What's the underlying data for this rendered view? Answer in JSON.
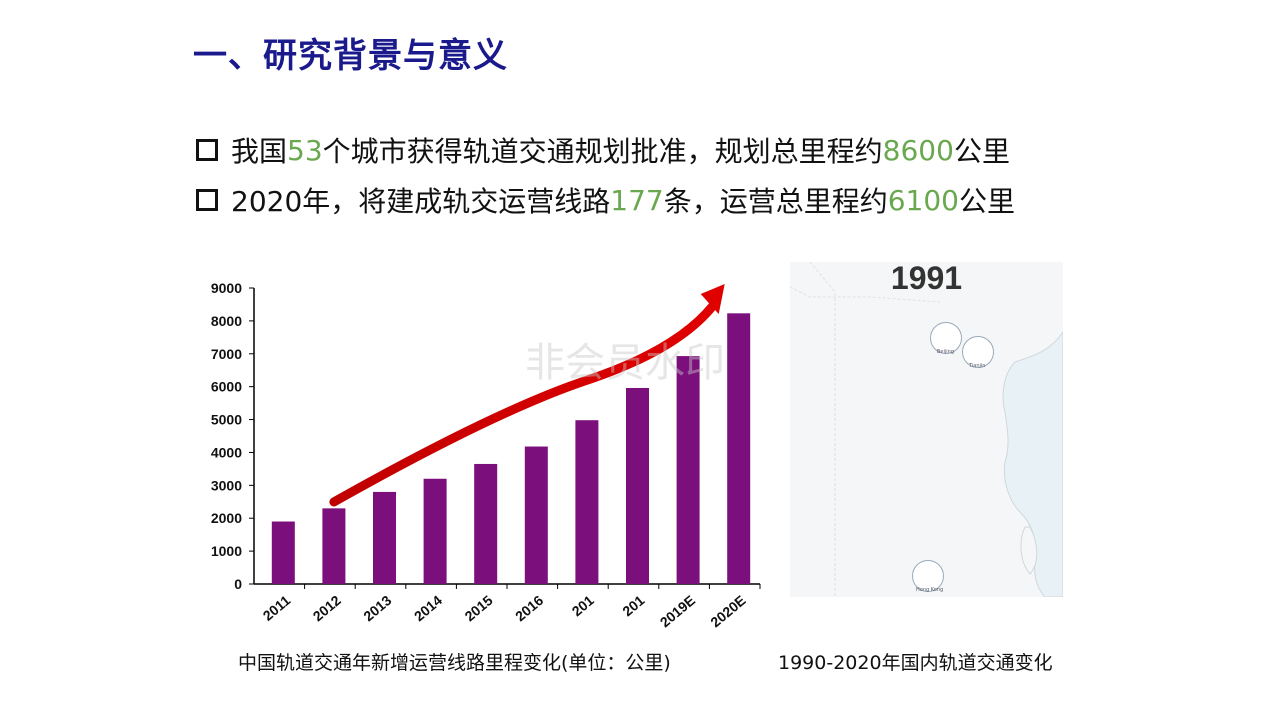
{
  "slide": {
    "title": "一、研究背景与意义",
    "bullets": [
      {
        "parts": [
          "我国",
          "53",
          "个城市获得轨道交通规划批准，规划总里程约",
          "8600",
          "公里"
        ]
      },
      {
        "parts": [
          "2020年，将建成轨交运营线路",
          "177",
          "条，运营总里程约",
          "6100",
          "公里"
        ]
      }
    ],
    "highlight_color": "#6aa84f",
    "title_color": "#1a1a8c"
  },
  "chart_data": {
    "type": "bar",
    "categories": [
      "2011",
      "2012",
      "2013",
      "2014",
      "2015",
      "2016",
      "201",
      "201",
      "2019E",
      "2020E"
    ],
    "values": [
      1900,
      2300,
      2800,
      3200,
      3650,
      4180,
      4980,
      5960,
      6930,
      8230
    ],
    "yticks": [
      "0",
      "1000",
      "2000",
      "3000",
      "4000",
      "5000",
      "6000",
      "7000",
      "8000",
      "9000"
    ],
    "ylim": [
      0,
      9000
    ],
    "bar_color": "#7b0f7b",
    "arrow_color": "#e00000",
    "grid": false,
    "watermark": "非会员水印",
    "caption": "中国轨道交通年新增运营线路里程变化(单位：公里)"
  },
  "map": {
    "year": "1991",
    "cities": [
      "Beijing",
      "Tianjin",
      "Hong Kong"
    ],
    "caption": "1990-2020年国内轨道交通变化"
  }
}
